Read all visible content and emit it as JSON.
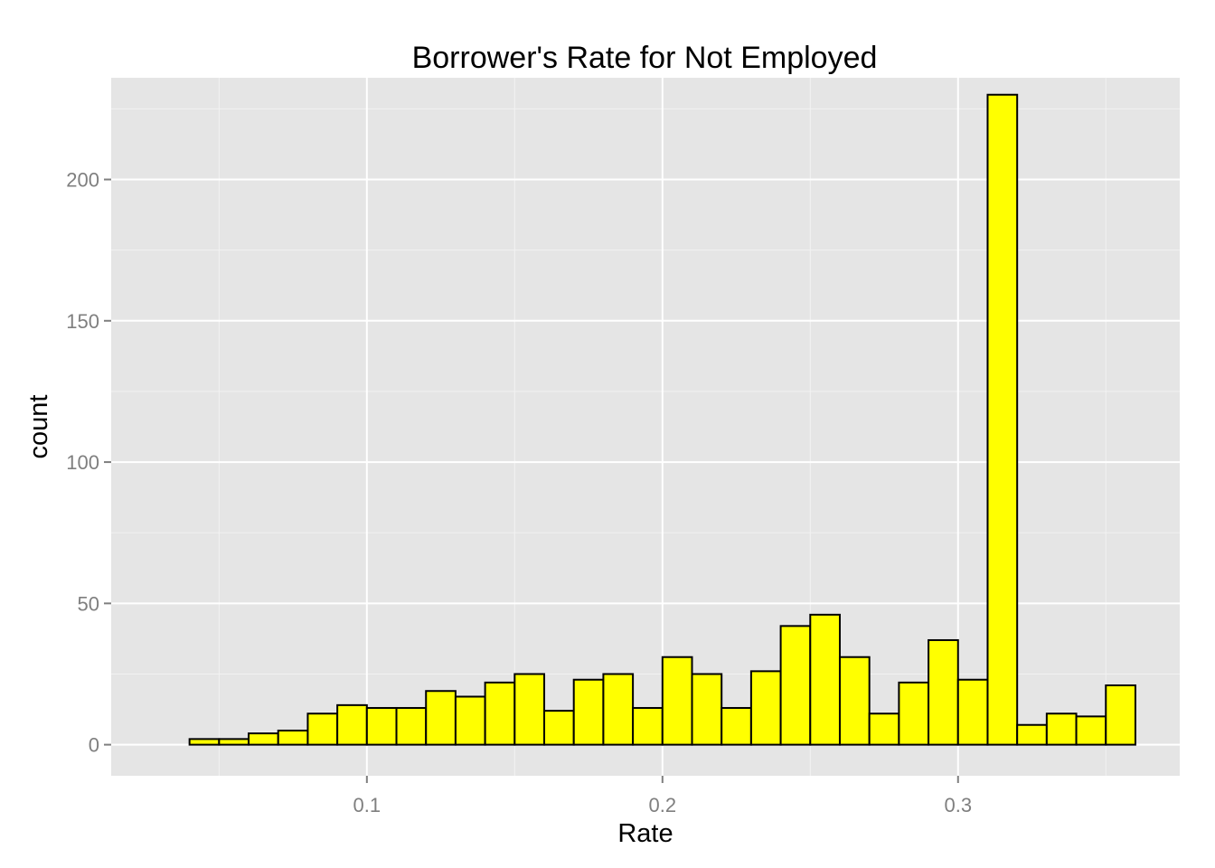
{
  "chart_data": {
    "type": "bar",
    "title": "Borrower's Rate for Not Employed",
    "xlabel": "Rate",
    "ylabel": "count",
    "xlim": [
      0.0135,
      0.375
    ],
    "ylim": [
      -11,
      236
    ],
    "x_ticks": [
      0.1,
      0.2,
      0.3
    ],
    "x_tick_labels": [
      "0.1",
      "0.2",
      "0.3"
    ],
    "y_ticks": [
      0,
      50,
      100,
      150,
      200
    ],
    "y_tick_labels": [
      "0",
      "50",
      "100",
      "150",
      "200"
    ],
    "bin_width": 0.01,
    "bin_start": 0.03,
    "values": [
      0,
      2,
      2,
      4,
      5,
      11,
      14,
      13,
      13,
      19,
      17,
      22,
      25,
      12,
      23,
      25,
      13,
      31,
      25,
      13,
      26,
      42,
      46,
      31,
      11,
      22,
      37,
      23,
      230,
      7,
      11,
      10,
      21
    ],
    "bar_color": "#ffff00",
    "bar_outline": "#000000",
    "panel_background": "#e5e5e5",
    "grid": true,
    "legend": "none"
  }
}
